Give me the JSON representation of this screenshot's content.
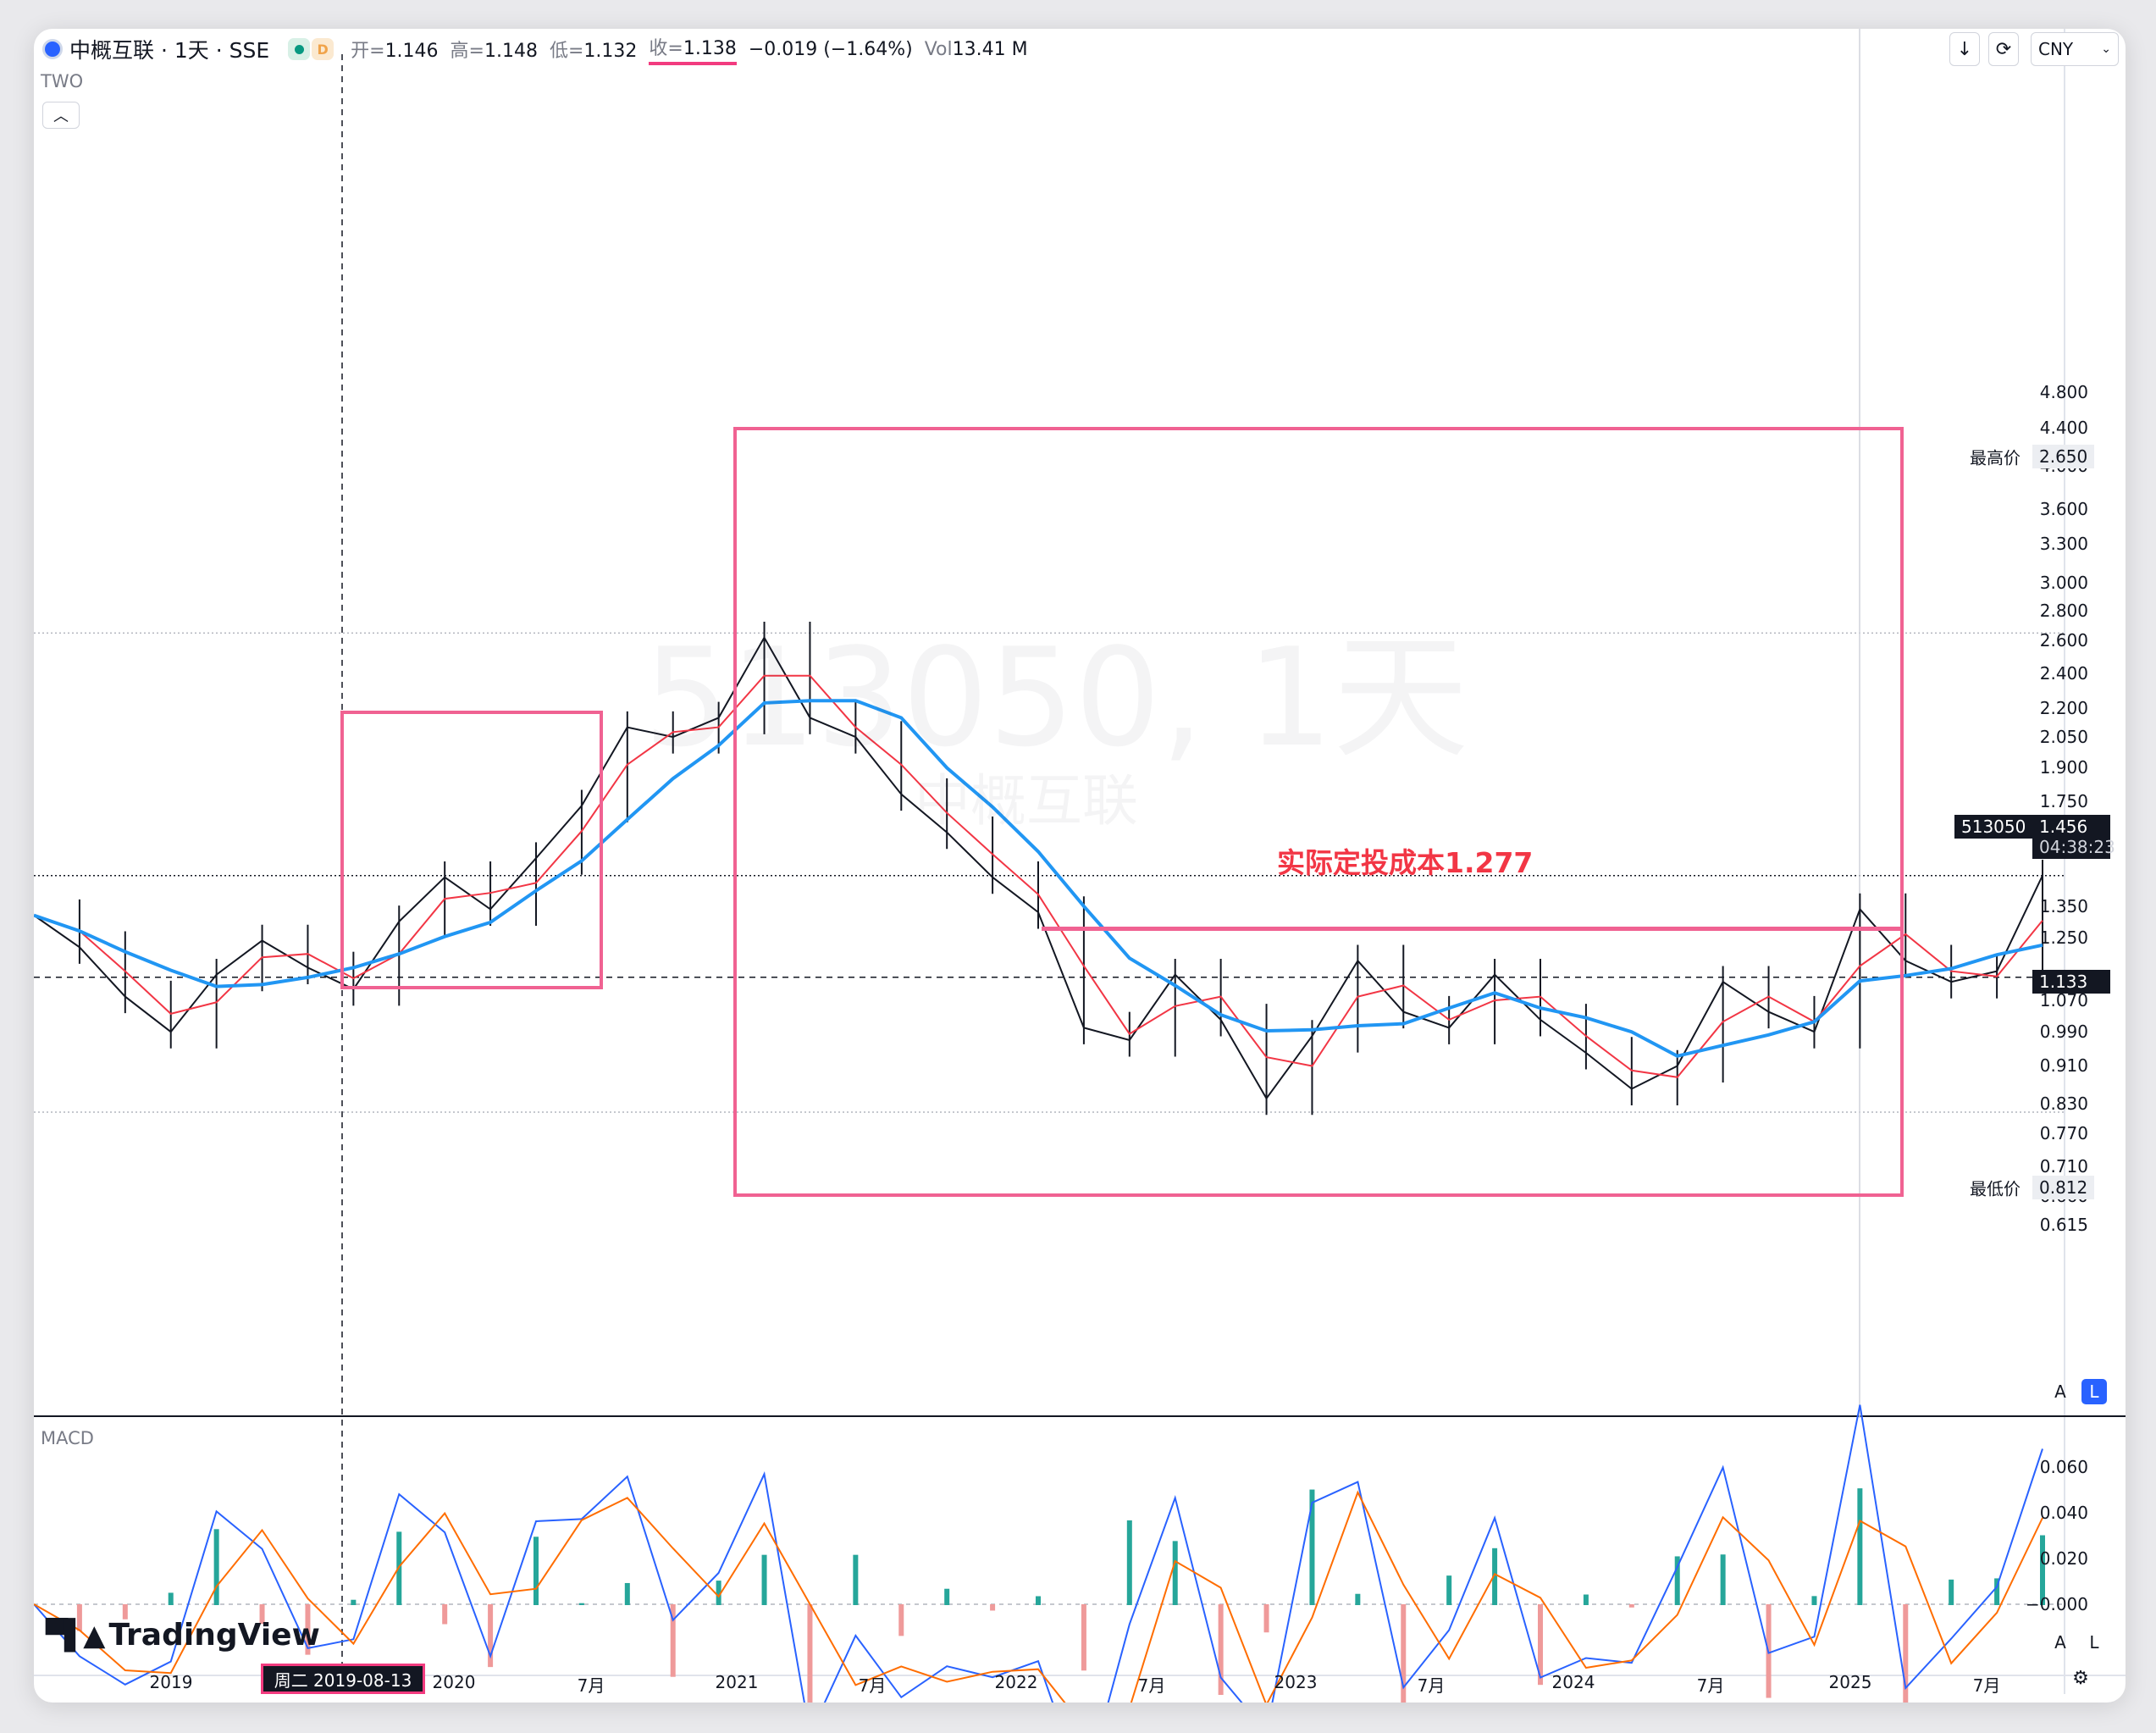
{
  "header": {
    "symbol_title": "中概互联 · 1天 · SSE",
    "d_badge": "D",
    "open_label": "开=",
    "open": "1.146",
    "high_label": "高=",
    "high": "1.148",
    "low_label": "低=",
    "low": "1.132",
    "close_label": "收=",
    "close": "1.138",
    "change": "−0.019 (−1.64%)",
    "vol_label": "Vol",
    "vol": "13.41 M",
    "indicator_label": "TWO"
  },
  "toolbar": {
    "currency": "CNY",
    "download_icon": "download-icon",
    "refresh_icon": "refresh-icon"
  },
  "watermark": {
    "big": "513050, 1天",
    "small": "中概互联"
  },
  "annotation": {
    "text": "实际定投成本1.277"
  },
  "price_scale": {
    "ticks": [
      "4.800",
      "4.400",
      "4.000",
      "3.600",
      "3.300",
      "3.000",
      "2.800",
      "2.600",
      "2.400",
      "2.200",
      "2.050",
      "1.900",
      "1.750",
      "1.600",
      "1.350",
      "1.250",
      "1.070",
      "0.990",
      "0.910",
      "0.830",
      "0.770",
      "0.710",
      "0.660",
      "0.615"
    ],
    "high_tag_label": "最高价",
    "high_tag_value": "2.650",
    "low_tag_label": "最低价",
    "low_tag_value": "0.812",
    "last_symbol": "513050",
    "last_price": "1.456",
    "countdown": "04:38:23",
    "crosshair_price": "1.133",
    "auto_btn": "A",
    "log_btn": "L"
  },
  "macd_scale": {
    "title": "MACD",
    "ticks": [
      "0.060",
      "0.040",
      "0.020",
      "−0.000"
    ],
    "auto_btn": "A",
    "log_btn": "L"
  },
  "time_axis": {
    "labels": [
      "2019",
      "2020",
      "7月",
      "2021",
      "7月",
      "2022",
      "7月",
      "2023",
      "7月",
      "2024",
      "7月",
      "2025",
      "7月"
    ],
    "crosshair_date": "周二 2019-08-13"
  },
  "branding": {
    "logo_text": "TradingView"
  },
  "colors": {
    "up": "#089981",
    "down": "#f23645",
    "ma_fast": "#131722",
    "ma_mid": "#f23645",
    "ma_slow": "#2196f3",
    "box": "#f06292",
    "macd_line": "#2962ff",
    "signal_line": "#ff6d00"
  },
  "chart_data": {
    "type": "line",
    "title": "513050, 1天",
    "scale": "log",
    "ylim": [
      0.6,
      5.0
    ],
    "x": [
      "2018-07",
      "2018-09",
      "2018-11",
      "2019-01",
      "2019-03",
      "2019-05",
      "2019-07",
      "2019-08",
      "2019-10",
      "2019-12",
      "2020-02",
      "2020-04",
      "2020-06",
      "2020-08",
      "2020-10",
      "2020-12",
      "2021-02",
      "2021-03",
      "2021-05",
      "2021-07",
      "2021-09",
      "2021-11",
      "2022-01",
      "2022-03",
      "2022-05",
      "2022-07",
      "2022-09",
      "2022-10",
      "2022-12",
      "2023-01",
      "2023-03",
      "2023-05",
      "2023-07",
      "2023-09",
      "2023-11",
      "2024-01",
      "2024-02",
      "2024-04",
      "2024-05",
      "2024-07",
      "2024-09",
      "2024-10",
      "2024-12",
      "2025-01",
      "2025-02"
    ],
    "series": [
      {
        "name": "收",
        "values": [
          1.32,
          1.22,
          1.08,
          0.99,
          1.14,
          1.24,
          1.16,
          1.1,
          1.3,
          1.45,
          1.34,
          1.52,
          1.73,
          2.1,
          2.05,
          2.15,
          2.62,
          2.15,
          2.05,
          1.78,
          1.62,
          1.45,
          1.33,
          1.0,
          0.97,
          1.14,
          1.02,
          0.84,
          0.98,
          1.18,
          1.04,
          1.0,
          1.14,
          1.02,
          0.94,
          0.86,
          0.91,
          1.12,
          1.04,
          0.99,
          1.34,
          1.18,
          1.12,
          1.15,
          1.456
        ]
      }
    ],
    "markers": {
      "high": 2.65,
      "low": 0.812,
      "cost_line": 1.277,
      "crosshair": 1.133
    }
  }
}
